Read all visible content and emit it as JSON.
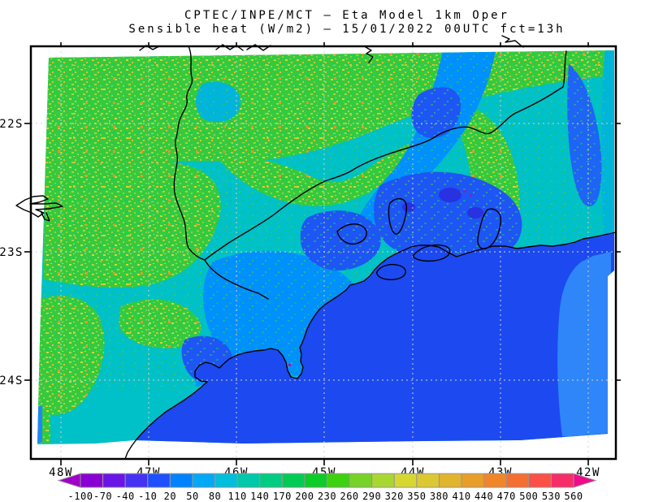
{
  "figure": {
    "title_line1": "CPTEC/INPE/MCT —  Eta Model 1km Oper",
    "title_line2": "Sensible heat (W/m2) — 15/01/2022 00UTC fct=13h"
  },
  "chart_data": {
    "type": "heatmap",
    "title": "CPTEC/INPE/MCT — Eta Model 1km Oper",
    "subtitle": "Sensible heat (W/m2) — 15/01/2022 00UTC fct=13h",
    "variable": "Sensible heat",
    "units": "W/m2",
    "model": "Eta Model 1km Oper",
    "init_time": "15/01/2022 00UTC",
    "forecast": "fct=13h",
    "grid": true,
    "graticule_style": "dashed",
    "x_axis": {
      "tick_labels": [
        "48W",
        "47W",
        "46W",
        "45W",
        "44W",
        "43W",
        "42W"
      ],
      "ticks_deg_west": [
        48,
        47,
        46,
        45,
        44,
        43,
        42
      ],
      "range_deg_west": [
        48.35,
        41.68
      ]
    },
    "y_axis": {
      "tick_labels": [
        "22S",
        "23S",
        "24S"
      ],
      "ticks_deg_south": [
        22,
        23,
        24
      ],
      "range_deg_south": [
        24.62,
        21.4
      ]
    },
    "colorbar": {
      "orientation": "horizontal-bottom",
      "levels": [
        "-100",
        "-70",
        "-40",
        "-10",
        "20",
        "50",
        "80",
        "110",
        "140",
        "170",
        "200",
        "230",
        "260",
        "290",
        "320",
        "350",
        "380",
        "410",
        "440",
        "470",
        "500",
        "530",
        "560"
      ],
      "segment_colors": [
        "#8800d2",
        "#6a14e6",
        "#4632f5",
        "#1e50ff",
        "#0082ff",
        "#00a8f5",
        "#00bedc",
        "#00c8aa",
        "#00cc82",
        "#00cc55",
        "#0ccc28",
        "#3cd20f",
        "#78d228",
        "#a8d732",
        "#d7d732",
        "#dcc832",
        "#e0b42d",
        "#e89e28",
        "#f08628",
        "#f56e32",
        "#fa5046",
        "#f52d69"
      ],
      "below_color": "#a000c8",
      "above_color": "#f00a8c",
      "border_color": "#969696"
    },
    "regions": [
      {
        "area": "northern inland strip (Minas border)",
        "approx_value_wm2": "200-290 green with 290-410 yellow/orange speckles"
      },
      {
        "area": "upper-left / west inland",
        "approx_value_wm2": "170-260 green, speckled"
      },
      {
        "area": "Paraiba valley diagonal band (upper right)",
        "approx_value_wm2": "20-80 light blue"
      },
      {
        "area": "central belt / Sao Paulo metro patches",
        "approx_value_wm2": "-10 to 50 blue"
      },
      {
        "area": "transition mid-land",
        "approx_value_wm2": "80-170 cyan/teal"
      },
      {
        "area": "Atlantic ocean (bottom right)",
        "approx_value_wm2": "about -10 to 20 uniform blue"
      },
      {
        "area": "ocean eastern band at right edge",
        "approx_value_wm2": "20-50 lighter blue"
      }
    ]
  },
  "map": {
    "palette": {
      "base": "#00c0c8",
      "green": "#34ca40",
      "cyan": "#00b4dc",
      "blueLight": "#0090ff",
      "blueMid": "#1e64f5",
      "blue": "#1e55f5",
      "blueDeep": "#2832e0",
      "ocean": "#1c4af0",
      "oceanBand": "#2e86f8",
      "sliver": "#1e88f5",
      "purple": "#7828c8",
      "magenta": "#b400b4",
      "contour": "#000000",
      "gridline": "#d2d2d2",
      "frame": "#000000",
      "sy1": "#d7d732",
      "sy2": "#e0c030",
      "sy3": "#a8d732",
      "sy4": "#96d23c",
      "so1": "#e89628",
      "sg1": "#2dc850",
      "sg2": "#00c87a",
      "sg3": "#50d23c"
    }
  }
}
